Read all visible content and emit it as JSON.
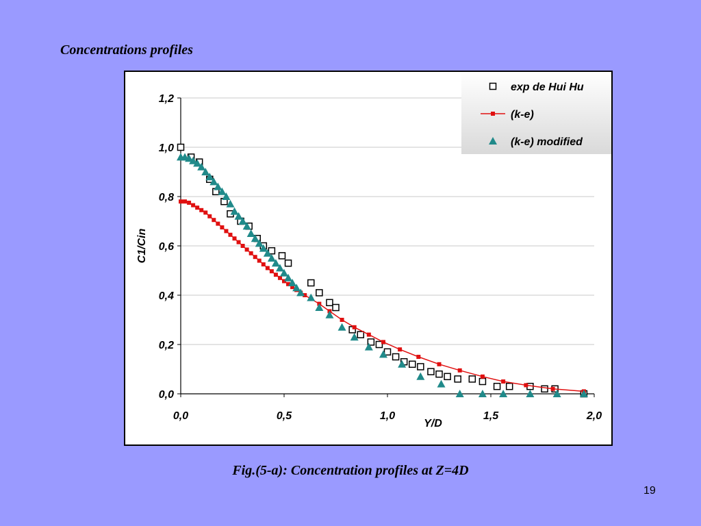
{
  "slide": {
    "title": "Concentrations profiles",
    "caption": "Fig.(5-a): Concentration profiles at Z=4D",
    "page_number": "19"
  },
  "chart_data": {
    "type": "scatter",
    "title": "",
    "xlabel": "Y/D",
    "ylabel": "C1/Cin",
    "xlim": [
      0,
      2.0
    ],
    "ylim": [
      0,
      1.2
    ],
    "xticks": [
      "0,0",
      "0,5",
      "1,0",
      "1,5",
      "2,0"
    ],
    "yticks": [
      "0,0",
      "0,2",
      "0,4",
      "0,6",
      "0,8",
      "1,0",
      "1,2"
    ],
    "grid": "horizontal",
    "legend_position": "top-right",
    "series": [
      {
        "name": "exp de Hui Hu",
        "marker": "open-square",
        "color": "#000000",
        "x": [
          0.0,
          0.05,
          0.09,
          0.14,
          0.17,
          0.21,
          0.24,
          0.29,
          0.33,
          0.37,
          0.4,
          0.44,
          0.49,
          0.52,
          0.63,
          0.67,
          0.72,
          0.75,
          0.83,
          0.87,
          0.92,
          0.96,
          1.0,
          1.04,
          1.08,
          1.12,
          1.16,
          1.21,
          1.25,
          1.29,
          1.34,
          1.41,
          1.46,
          1.53,
          1.59,
          1.69,
          1.76,
          1.81,
          1.95
        ],
        "y": [
          1.0,
          0.96,
          0.94,
          0.87,
          0.82,
          0.78,
          0.73,
          0.7,
          0.68,
          0.63,
          0.6,
          0.58,
          0.56,
          0.53,
          0.45,
          0.41,
          0.37,
          0.35,
          0.26,
          0.24,
          0.21,
          0.2,
          0.17,
          0.15,
          0.13,
          0.12,
          0.11,
          0.09,
          0.08,
          0.07,
          0.06,
          0.06,
          0.05,
          0.03,
          0.03,
          0.03,
          0.02,
          0.02,
          0.0
        ]
      },
      {
        "name": "(k-e)",
        "marker": "filled-square-line",
        "color": "#e01010",
        "x": [
          0.0,
          0.02,
          0.04,
          0.06,
          0.08,
          0.1,
          0.12,
          0.14,
          0.16,
          0.18,
          0.2,
          0.22,
          0.24,
          0.26,
          0.28,
          0.3,
          0.32,
          0.34,
          0.36,
          0.38,
          0.4,
          0.42,
          0.44,
          0.46,
          0.48,
          0.5,
          0.52,
          0.54,
          0.56,
          0.58,
          0.6,
          0.63,
          0.67,
          0.72,
          0.78,
          0.84,
          0.91,
          0.98,
          1.06,
          1.15,
          1.25,
          1.35,
          1.46,
          1.56,
          1.67,
          1.8,
          1.95
        ],
        "y": [
          0.78,
          0.78,
          0.775,
          0.765,
          0.755,
          0.745,
          0.735,
          0.72,
          0.705,
          0.69,
          0.675,
          0.66,
          0.645,
          0.63,
          0.615,
          0.6,
          0.585,
          0.57,
          0.555,
          0.54,
          0.525,
          0.51,
          0.497,
          0.483,
          0.47,
          0.457,
          0.445,
          0.433,
          0.421,
          0.41,
          0.4,
          0.385,
          0.365,
          0.335,
          0.3,
          0.27,
          0.24,
          0.21,
          0.18,
          0.15,
          0.12,
          0.095,
          0.07,
          0.05,
          0.035,
          0.02,
          0.01
        ]
      },
      {
        "name": "(k-e) modified",
        "marker": "filled-triangle",
        "color": "#208a8a",
        "x": [
          0.0,
          0.02,
          0.04,
          0.06,
          0.08,
          0.1,
          0.12,
          0.14,
          0.16,
          0.18,
          0.2,
          0.22,
          0.24,
          0.26,
          0.28,
          0.3,
          0.32,
          0.34,
          0.36,
          0.38,
          0.4,
          0.42,
          0.44,
          0.46,
          0.48,
          0.5,
          0.52,
          0.54,
          0.56,
          0.58,
          0.63,
          0.67,
          0.72,
          0.78,
          0.84,
          0.91,
          0.98,
          1.07,
          1.16,
          1.26,
          1.35,
          1.46,
          1.56,
          1.69,
          1.82,
          1.95
        ],
        "y": [
          0.96,
          0.96,
          0.955,
          0.945,
          0.935,
          0.92,
          0.9,
          0.88,
          0.86,
          0.84,
          0.82,
          0.8,
          0.77,
          0.74,
          0.72,
          0.7,
          0.68,
          0.65,
          0.63,
          0.61,
          0.59,
          0.57,
          0.55,
          0.53,
          0.51,
          0.49,
          0.47,
          0.45,
          0.43,
          0.41,
          0.39,
          0.35,
          0.32,
          0.27,
          0.23,
          0.19,
          0.16,
          0.12,
          0.07,
          0.04,
          0.0,
          0.0,
          0.0,
          0.0,
          0.0,
          0.0
        ]
      }
    ]
  }
}
